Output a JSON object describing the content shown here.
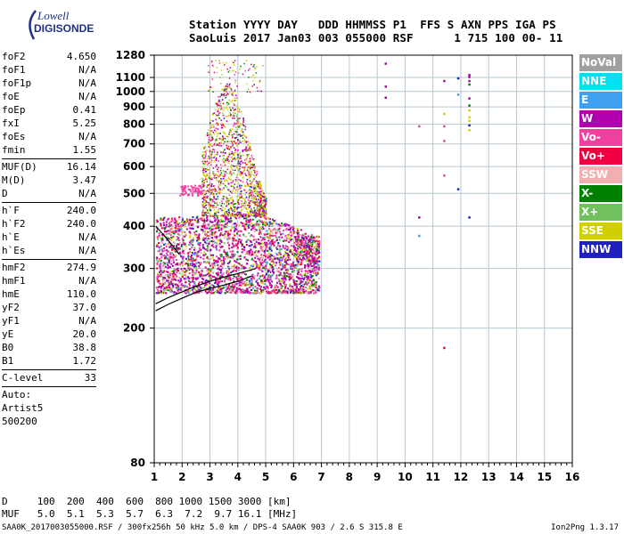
{
  "logo": {
    "line1": "Lowell",
    "line2": "DIGISONDE"
  },
  "header": {
    "line1": "Station YYYY DAY   DDD HHMMSS P1  FFS S AXN PPS IGA PS",
    "line2": "SaoLuis 2017 Jan03 003 055000 RSF      1 715 100 00- 11"
  },
  "params": [
    {
      "name": "foF2",
      "value": "4.650"
    },
    {
      "name": "foF1",
      "value": "N/A"
    },
    {
      "name": "foF1p",
      "value": "N/A"
    },
    {
      "name": "foE",
      "value": "N/A"
    },
    {
      "name": "foEp",
      "value": "0.41"
    },
    {
      "name": "fxI",
      "value": "5.25"
    },
    {
      "name": "foEs",
      "value": "N/A"
    },
    {
      "name": "fmin",
      "value": "1.55"
    },
    {
      "sep": true
    },
    {
      "name": "MUF(D)",
      "value": "16.14"
    },
    {
      "name": "M(D)",
      "value": "3.47"
    },
    {
      "name": "D",
      "value": "N/A"
    },
    {
      "sep": true
    },
    {
      "name": "h`F",
      "value": "240.0"
    },
    {
      "name": "h`F2",
      "value": "240.0"
    },
    {
      "name": "h`E",
      "value": "N/A"
    },
    {
      "name": "h`Es",
      "value": "N/A"
    },
    {
      "sep": true
    },
    {
      "name": "hmF2",
      "value": "274.9"
    },
    {
      "name": "hmF1",
      "value": "N/A"
    },
    {
      "name": "hmE",
      "value": "110.0"
    },
    {
      "name": "yF2",
      "value": "37.0"
    },
    {
      "name": "yF1",
      "value": "N/A"
    },
    {
      "name": "yE",
      "value": "20.0"
    },
    {
      "name": "B0",
      "value": "38.8"
    },
    {
      "name": "B1",
      "value": "1.72"
    },
    {
      "sep": true
    },
    {
      "name": "C-level",
      "value": "33"
    },
    {
      "sep": true
    },
    {
      "text": "Auto:"
    },
    {
      "text": "Artist5"
    },
    {
      "text": "500200"
    }
  ],
  "legend": [
    {
      "label": "NoVal",
      "color": "#a0a0a0"
    },
    {
      "label": "NNE",
      "color": "#00e0f0"
    },
    {
      "label": "E",
      "color": "#40a0f0"
    },
    {
      "label": "W",
      "color": "#b000b0"
    },
    {
      "label": "Vo-",
      "color": "#f040a0"
    },
    {
      "label": "Vo+",
      "color": "#f00040"
    },
    {
      "label": "SSW",
      "color": "#f0b0b0"
    },
    {
      "label": "X-",
      "color": "#008000"
    },
    {
      "label": "X+",
      "color": "#70c060"
    },
    {
      "label": "SSE",
      "color": "#d0d000"
    },
    {
      "label": "NNW",
      "color": "#2020c0"
    }
  ],
  "bottom": {
    "line1": "D     100  200  400  600  800 1000 1500 3000 [km]",
    "line2": "MUF   5.0  5.1  5.3  5.7  6.3  7.2  9.7 16.1 [MHz]"
  },
  "footer": {
    "left": "SAA0K_2017003055000.RSF / 300fx256h 50 kHz 5.0 km / DPS-4 SAA0K 903 / 2.6 S 315.8 E",
    "right": "Ion2Png 1.3.17"
  },
  "chart_data": {
    "type": "scatter",
    "xlim": [
      1,
      16
    ],
    "ylim_log": [
      80,
      1280
    ],
    "x_ticks": [
      1,
      2,
      3,
      4,
      5,
      6,
      7,
      8,
      9,
      10,
      11,
      12,
      13,
      14,
      15,
      16
    ],
    "y_ticks": [
      80,
      200,
      300,
      400,
      500,
      600,
      700,
      800,
      900,
      1000,
      1100,
      1280
    ],
    "x_tick_labels": [
      "1",
      "2",
      "3",
      "4",
      "5",
      "6",
      "7",
      "8",
      "9",
      "10",
      "11",
      "12",
      "13",
      "14",
      "15",
      "16"
    ],
    "y_tick_labels": [
      "80",
      "200",
      "300",
      "400",
      "500",
      "600",
      "700",
      "800",
      "900",
      "1000",
      "1100",
      "1280"
    ],
    "grid": true,
    "trace_lines": [
      {
        "name": "h-prime trace",
        "points": [
          [
            1.05,
            225
          ],
          [
            1.5,
            235
          ],
          [
            2.0,
            245
          ],
          [
            2.5,
            255
          ],
          [
            3.0,
            262
          ],
          [
            3.5,
            268
          ],
          [
            4.0,
            275
          ],
          [
            4.5,
            285
          ]
        ]
      },
      {
        "name": "profile",
        "points": [
          [
            1.05,
            236
          ],
          [
            1.5,
            246
          ],
          [
            2.0,
            256
          ],
          [
            2.5,
            266
          ],
          [
            3.0,
            275
          ],
          [
            3.5,
            283
          ],
          [
            4.0,
            290
          ],
          [
            4.4,
            296
          ],
          [
            4.65,
            300
          ]
        ]
      },
      {
        "name": "upper arc",
        "points": [
          [
            1.05,
            400
          ],
          [
            1.3,
            380
          ],
          [
            1.6,
            355
          ],
          [
            1.9,
            330
          ]
        ]
      }
    ],
    "sparse_points": [
      {
        "x": 9.3,
        "y": 1210,
        "s": "W"
      },
      {
        "x": 9.3,
        "y": 1035,
        "s": "W"
      },
      {
        "x": 9.3,
        "y": 960,
        "s": "W"
      },
      {
        "x": 10.5,
        "y": 790,
        "s": "Vo-"
      },
      {
        "x": 10.5,
        "y": 425,
        "s": "W"
      },
      {
        "x": 10.5,
        "y": 375,
        "s": "E"
      },
      {
        "x": 11.4,
        "y": 1075,
        "s": "W"
      },
      {
        "x": 11.4,
        "y": 860,
        "s": "SSE"
      },
      {
        "x": 11.4,
        "y": 790,
        "s": "Vo-"
      },
      {
        "x": 11.4,
        "y": 715,
        "s": "Vo-"
      },
      {
        "x": 11.4,
        "y": 565,
        "s": "Vo-"
      },
      {
        "x": 11.4,
        "y": 175,
        "s": "Vo+"
      },
      {
        "x": 11.9,
        "y": 1095,
        "s": "NNW"
      },
      {
        "x": 11.9,
        "y": 980,
        "s": "E"
      },
      {
        "x": 11.9,
        "y": 515,
        "s": "NNW"
      },
      {
        "x": 12.3,
        "y": 1120,
        "s": "W"
      },
      {
        "x": 12.3,
        "y": 1105,
        "s": "W"
      },
      {
        "x": 12.3,
        "y": 1075,
        "s": "W"
      },
      {
        "x": 12.3,
        "y": 1050,
        "s": "X-"
      },
      {
        "x": 12.3,
        "y": 955,
        "s": "W"
      },
      {
        "x": 12.3,
        "y": 910,
        "s": "X-"
      },
      {
        "x": 12.3,
        "y": 880,
        "s": "SSE"
      },
      {
        "x": 12.3,
        "y": 840,
        "s": "SSE"
      },
      {
        "x": 12.3,
        "y": 820,
        "s": "SSE"
      },
      {
        "x": 12.3,
        "y": 795,
        "s": "NNW"
      },
      {
        "x": 12.3,
        "y": 770,
        "s": "SSE"
      },
      {
        "x": 12.3,
        "y": 425,
        "s": "NNW"
      }
    ],
    "dense_regions": [
      {
        "x": [
          1.05,
          6.9
        ],
        "y": [
          250,
          430
        ],
        "density": "high"
      },
      {
        "x": [
          2.7,
          5.0
        ],
        "y": [
          430,
          1000
        ],
        "density": "medium"
      },
      {
        "x": [
          2.9,
          4.9
        ],
        "y": [
          1000,
          1240
        ],
        "density": "low"
      }
    ]
  }
}
